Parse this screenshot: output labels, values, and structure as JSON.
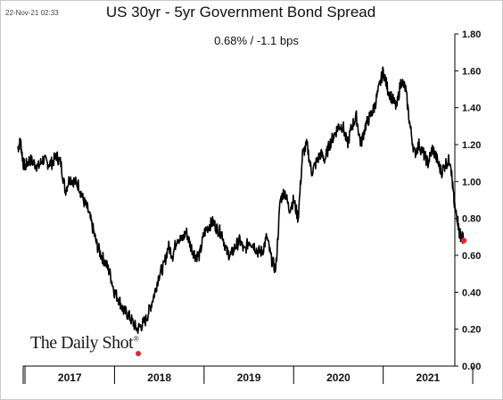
{
  "header": {
    "timestamp": "22-Nov-21 02:33",
    "title": "US 30yr - 5yr Government Bond Spread",
    "subtitle": "0.68%  /  -1.1 bps"
  },
  "logo": {
    "text": "The Daily Shot",
    "reg": "®"
  },
  "colors": {
    "line": "#000000",
    "last_point": "#e8242b",
    "axis": "#000000"
  },
  "chart_data": {
    "type": "line",
    "title": "US 30yr - 5yr Government Bond Spread",
    "subtitle": "0.68%  /  -1.1 bps",
    "y_axis_position": "right",
    "ylim": [
      0.0,
      1.8
    ],
    "yticks": [
      "0.00",
      "0.20",
      "0.40",
      "0.60",
      "0.80",
      "1.00",
      "1.20",
      "1.40",
      "1.60",
      "1.80"
    ],
    "xlim": [
      2016.9,
      2021.8
    ],
    "xticks": [
      "2017",
      "2018",
      "2019",
      "2020",
      "2021"
    ],
    "series": [
      {
        "x": [
          2016.92,
          2016.95,
          2016.98,
          2017.0,
          2017.05,
          2017.1,
          2017.15,
          2017.2,
          2017.25,
          2017.3,
          2017.35,
          2017.4,
          2017.45,
          2017.5,
          2017.55,
          2017.6,
          2017.65,
          2017.7,
          2017.75,
          2017.8,
          2017.85,
          2017.9,
          2017.95,
          2018.0,
          2018.05,
          2018.1,
          2018.15,
          2018.2,
          2018.25,
          2018.3,
          2018.35,
          2018.4,
          2018.45,
          2018.5,
          2018.55,
          2018.6,
          2018.65,
          2018.7,
          2018.75,
          2018.8,
          2018.85,
          2018.9,
          2018.95,
          2019.0,
          2019.05,
          2019.1,
          2019.15,
          2019.2,
          2019.25,
          2019.3,
          2019.35,
          2019.4,
          2019.45,
          2019.5,
          2019.55,
          2019.6,
          2019.65,
          2019.7,
          2019.75,
          2019.8,
          2019.85,
          2019.9,
          2019.95,
          2020.0,
          2020.05,
          2020.1,
          2020.15,
          2020.2,
          2020.25,
          2020.3,
          2020.35,
          2020.4,
          2020.45,
          2020.5,
          2020.55,
          2020.6,
          2020.65,
          2020.7,
          2020.75,
          2020.8,
          2020.85,
          2020.9,
          2020.95,
          2021.0,
          2021.05,
          2021.1,
          2021.15,
          2021.2,
          2021.25,
          2021.3,
          2021.35,
          2021.4,
          2021.45,
          2021.5,
          2021.55,
          2021.6,
          2021.65,
          2021.7,
          2021.75,
          2021.78,
          2021.8,
          2021.83,
          2021.85,
          2021.88,
          2021.9
        ],
        "y": [
          1.18,
          1.22,
          1.1,
          1.08,
          1.12,
          1.1,
          1.08,
          1.12,
          1.1,
          1.1,
          1.14,
          1.1,
          0.95,
          1.02,
          1.0,
          0.98,
          0.9,
          0.85,
          0.76,
          0.66,
          0.6,
          0.56,
          0.5,
          0.4,
          0.36,
          0.3,
          0.28,
          0.24,
          0.2,
          0.22,
          0.25,
          0.32,
          0.4,
          0.5,
          0.54,
          0.65,
          0.6,
          0.7,
          0.68,
          0.73,
          0.65,
          0.6,
          0.6,
          0.72,
          0.76,
          0.78,
          0.74,
          0.72,
          0.62,
          0.6,
          0.65,
          0.68,
          0.62,
          0.68,
          0.66,
          0.62,
          0.62,
          0.7,
          0.58,
          0.52,
          0.9,
          0.95,
          0.85,
          0.9,
          0.8,
          1.15,
          1.2,
          1.05,
          1.1,
          1.15,
          1.12,
          1.2,
          1.25,
          1.3,
          1.3,
          1.2,
          1.3,
          1.35,
          1.2,
          1.3,
          1.35,
          1.4,
          1.5,
          1.6,
          1.5,
          1.45,
          1.4,
          1.55,
          1.5,
          1.3,
          1.15,
          1.2,
          1.15,
          1.1,
          1.18,
          1.12,
          1.05,
          1.1,
          1.12,
          0.95,
          0.85,
          0.8,
          0.72,
          0.7,
          0.68
        ]
      }
    ],
    "last_value": 0.68,
    "grid": false
  }
}
